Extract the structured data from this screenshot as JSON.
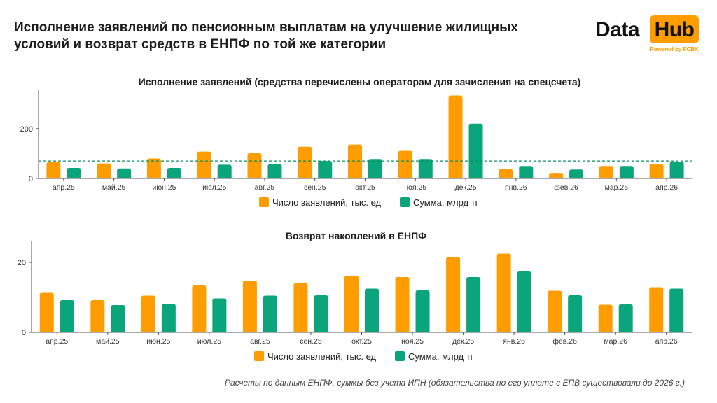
{
  "header": {
    "title": "Исполнение заявлений по пенсионным выплатам на улучшение жилищных условий и возврат средств в ЕНПФ по той же категории"
  },
  "logo": {
    "word1": "Data",
    "word2": "Hub",
    "powered": "Powered by FCBK"
  },
  "colors": {
    "orange": "#ff9d00",
    "green": "#0aa57a",
    "avg_line": "#0b8f5f",
    "axis": "#555555"
  },
  "chart_data": [
    {
      "type": "bar",
      "title": "Исполнение заявлений (средства перечислены операторам для зачисления на спецсчета)",
      "categories": [
        "апр.25",
        "май.25",
        "июн.25",
        "июл.25",
        "авг.25",
        "сен.25",
        "окт.25",
        "ноя.25",
        "дек.25",
        "янв.26",
        "фев.26",
        "мар.26",
        "апр.26"
      ],
      "series": [
        {
          "name": "Число заявлений, тыс. ед",
          "color": "#ff9d00",
          "values": [
            65,
            60,
            80,
            108,
            101,
            127,
            136,
            111,
            333,
            37,
            22,
            50,
            57
          ]
        },
        {
          "name": "Сумма, млрд тг",
          "color": "#0aa57a",
          "values": [
            42,
            40,
            42,
            55,
            58,
            70,
            78,
            78,
            220,
            50,
            36,
            50,
            67
          ]
        }
      ],
      "yticks": [
        0,
        200
      ],
      "ylim": [
        0,
        340
      ],
      "reference_line": {
        "value": 70,
        "style": "dashed"
      },
      "legend_position": "bottom",
      "grid": false
    },
    {
      "type": "bar",
      "title": "Возврат накоплений в ЕНПФ",
      "categories": [
        "апр.25",
        "май.25",
        "июн.25",
        "июл.25",
        "авг.25",
        "сен.25",
        "окт.25",
        "ноя.25",
        "дек.25",
        "янв.26",
        "фев.26",
        "мар.26",
        "апр.26"
      ],
      "series": [
        {
          "name": "Число заявлений, тыс. ед",
          "color": "#ff9d00",
          "values": [
            11.3,
            9.2,
            10.5,
            13.4,
            14.8,
            14.1,
            16.2,
            15.8,
            21.5,
            22.5,
            11.9,
            7.9,
            12.9
          ]
        },
        {
          "name": "Сумма, млрд тг",
          "color": "#0aa57a",
          "values": [
            9.2,
            7.8,
            8.1,
            9.7,
            10.5,
            10.6,
            12.5,
            12.0,
            15.8,
            17.4,
            10.6,
            8.0,
            12.5
          ]
        }
      ],
      "yticks": [
        0,
        20
      ],
      "ylim": [
        0,
        25
      ],
      "legend_position": "bottom",
      "grid": false
    }
  ],
  "footnote": "Расчеты по данным ЕНПФ, суммы без учета ИПН (обязательства по его уплате с ЕПВ существовали до 2026 г.)"
}
